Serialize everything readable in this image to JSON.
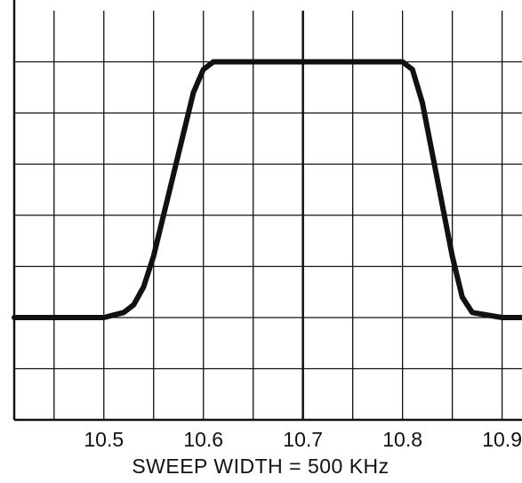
{
  "chart_data": {
    "type": "line",
    "title": "",
    "xlabel": "SWEEP WIDTH = 500 KHz",
    "ylabel": "",
    "xticks": [
      "10.5",
      "10.6",
      "10.7",
      "10.8",
      "10.9"
    ],
    "xlim": [
      10.41,
      10.92
    ],
    "ylim": [
      0,
      8
    ],
    "grid": true,
    "legend": "none",
    "colors": {
      "line": "#111111",
      "grid": "#111111",
      "background": "#ffffff"
    },
    "series": [
      {
        "x": [
          10.41,
          10.47,
          10.5,
          10.52,
          10.53,
          10.54,
          10.55,
          10.56,
          10.57,
          10.58,
          10.59,
          10.6,
          10.61,
          10.65,
          10.7,
          10.75,
          10.8,
          10.81,
          10.82,
          10.83,
          10.84,
          10.85,
          10.86,
          10.87,
          10.9,
          10.92
        ],
        "y": [
          2.0,
          2.0,
          2.0,
          2.1,
          2.25,
          2.6,
          3.2,
          4.0,
          4.8,
          5.6,
          6.4,
          6.85,
          7.0,
          7.0,
          7.0,
          7.0,
          7.0,
          6.85,
          6.2,
          5.2,
          4.2,
          3.2,
          2.4,
          2.1,
          2.0,
          2.0
        ]
      }
    ]
  }
}
